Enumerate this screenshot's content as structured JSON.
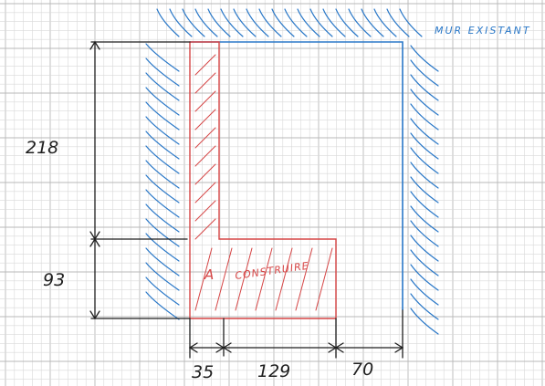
{
  "labels": {
    "existing_wall": "MUR EXISTANT",
    "to_build_prefix": "A",
    "to_build": "CONSTRUIRE"
  },
  "dimensions": {
    "left_upper": "218",
    "left_lower": "93",
    "bottom_first": "35",
    "bottom_second": "129",
    "bottom_third": "70"
  },
  "colors": {
    "existing": "#2a78c8",
    "new_construction": "#d64545",
    "dimension_ink": "#1f1f1f",
    "grid_minor": "#d9d9d9",
    "grid_major": "#b9b9b9"
  }
}
